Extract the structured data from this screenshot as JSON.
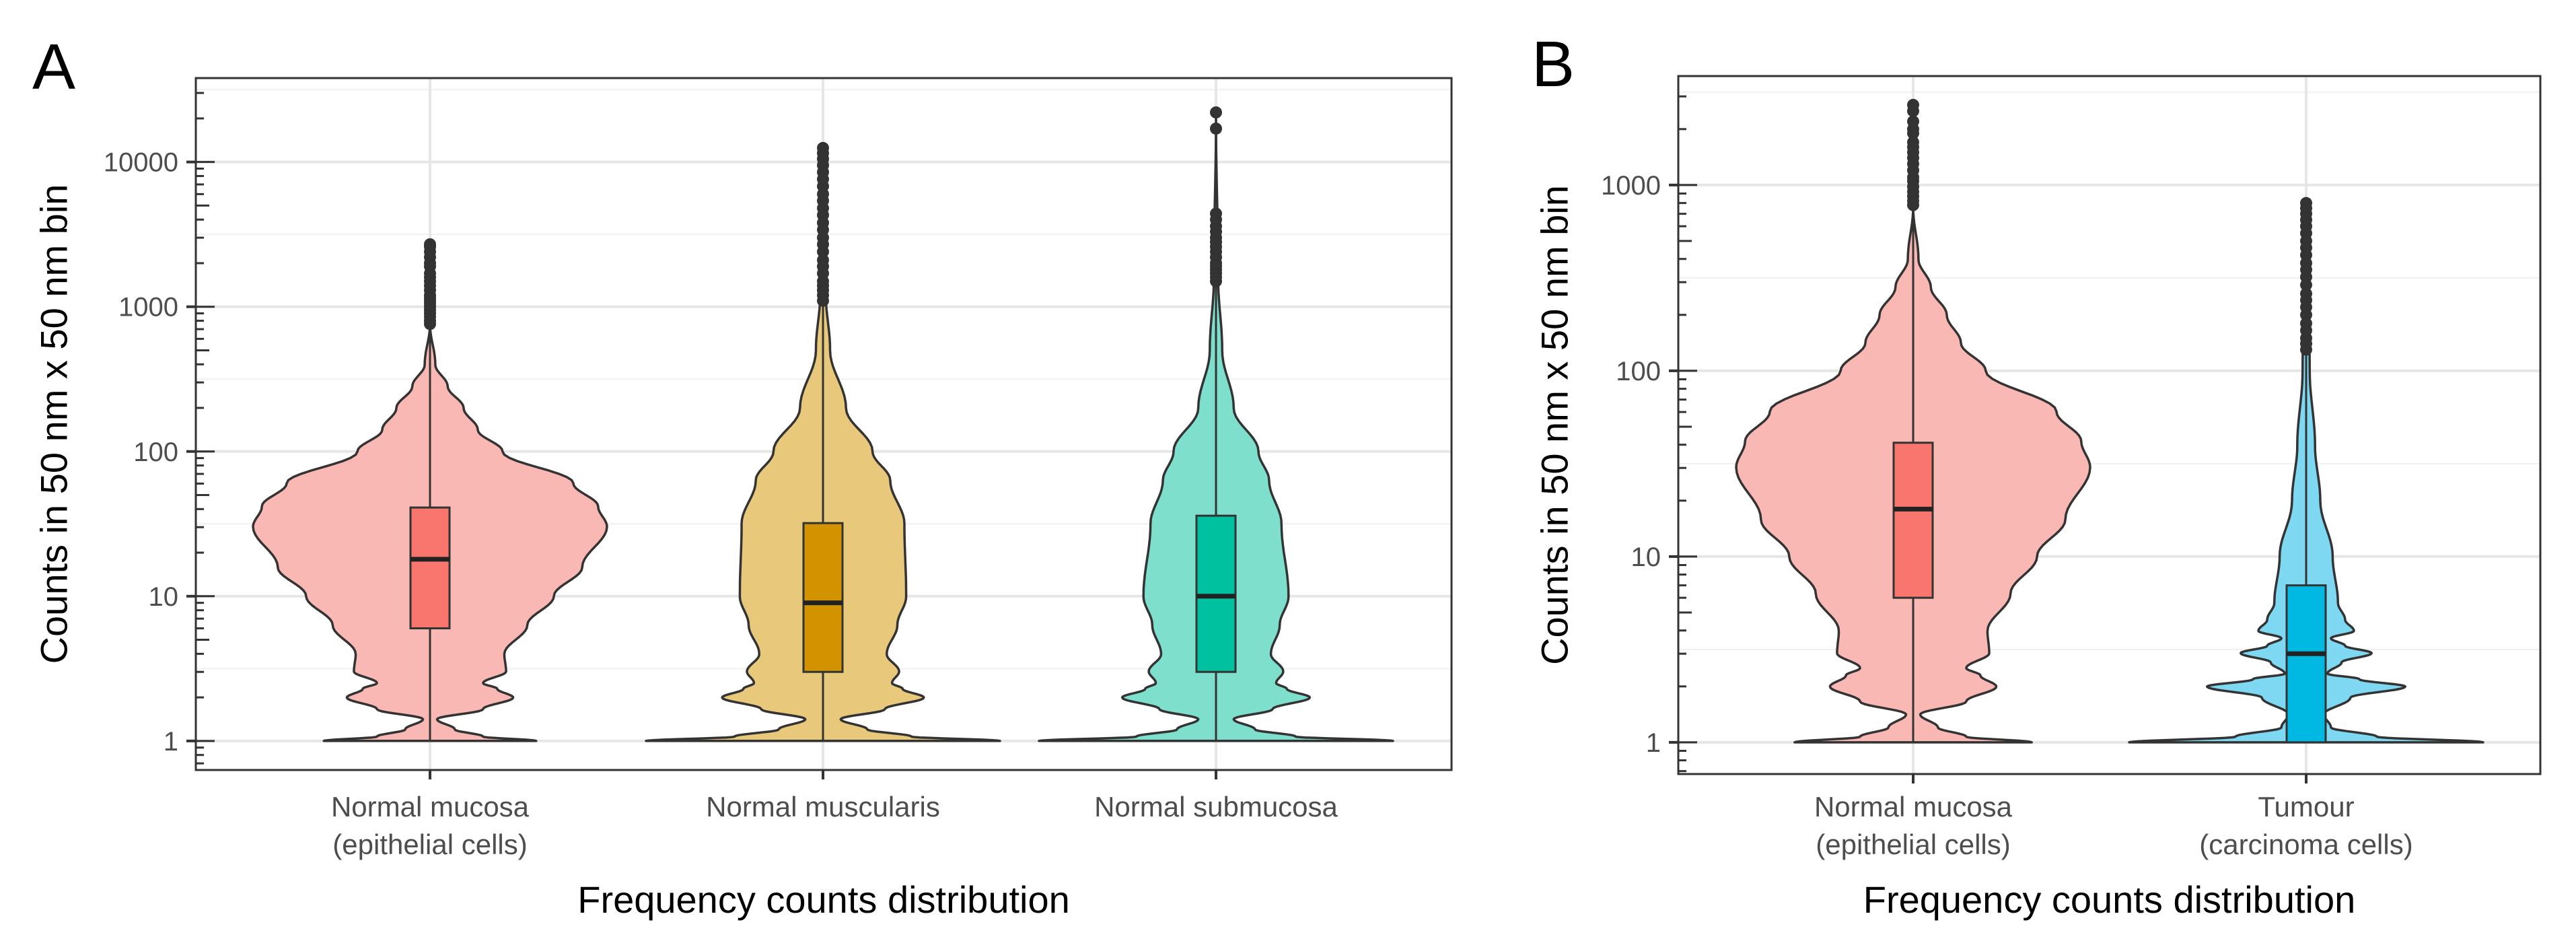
{
  "chart_data": [
    {
      "panel": "A",
      "type": "violin",
      "xlabel": "Frequency counts distribution",
      "ylabel": "Counts in 50 nm x 50 nm bin",
      "yscale": "log10",
      "ylim": [
        0.63,
        38000
      ],
      "yticks": [
        1,
        10,
        100,
        1000,
        10000
      ],
      "ytick_labels": [
        "1",
        "10",
        "100",
        "1000",
        "10000"
      ],
      "grid": true,
      "groups": [
        {
          "label_lines": [
            "Normal mucosa",
            "(epithelial cells)"
          ],
          "box_color": "#F8766D",
          "violin_color": "#F9B8B3",
          "whisker_low": 1,
          "q1": 6,
          "median": 18,
          "q3": 41,
          "whisker_high": 750,
          "outliers": [
            760,
            800,
            850,
            900,
            950,
            1000,
            1050,
            1100,
            1150,
            1200,
            1300,
            1400,
            1500,
            1600,
            1700,
            1900,
            2000,
            2200,
            2400,
            2600,
            2700
          ],
          "density_profile": [
            [
              0,
              0.6
            ],
            [
              0.03,
              0.3
            ],
            [
              0.08,
              0.14
            ],
            [
              0.15,
              0.04
            ],
            [
              0.22,
              0.3
            ],
            [
              0.3,
              0.47
            ],
            [
              0.36,
              0.38
            ],
            [
              0.4,
              0.3
            ],
            [
              0.48,
              0.43
            ],
            [
              0.6,
              0.42
            ],
            [
              0.8,
              0.55
            ],
            [
              1.0,
              0.7
            ],
            [
              1.2,
              0.86
            ],
            [
              1.48,
              1.0
            ],
            [
              1.62,
              0.95
            ],
            [
              1.78,
              0.81
            ],
            [
              2.0,
              0.41
            ],
            [
              2.15,
              0.27
            ],
            [
              2.3,
              0.19
            ],
            [
              2.45,
              0.1
            ],
            [
              2.6,
              0.03
            ],
            [
              2.88,
              0
            ]
          ]
        },
        {
          "label_lines": [
            "Normal muscularis"
          ],
          "box_color": "#D39200",
          "violin_color": "#E8C87A",
          "whisker_low": 1,
          "q1": 3,
          "median": 9,
          "q3": 32,
          "whisker_high": 1080,
          "outliers": [
            1100,
            1200,
            1300,
            1400,
            1500,
            1700,
            1900,
            2100,
            2400,
            2700,
            3000,
            3400,
            3800,
            4300,
            4800,
            5400,
            6000,
            6800,
            7600,
            8500,
            9500,
            10500,
            11500,
            12500
          ],
          "density_profile": [
            [
              0,
              1.0
            ],
            [
              0.03,
              0.5
            ],
            [
              0.08,
              0.25
            ],
            [
              0.15,
              0.1
            ],
            [
              0.22,
              0.35
            ],
            [
              0.3,
              0.57
            ],
            [
              0.36,
              0.45
            ],
            [
              0.4,
              0.39
            ],
            [
              0.48,
              0.43
            ],
            [
              0.6,
              0.36
            ],
            [
              0.8,
              0.42
            ],
            [
              1.0,
              0.47
            ],
            [
              1.5,
              0.46
            ],
            [
              1.8,
              0.38
            ],
            [
              2.0,
              0.28
            ],
            [
              2.3,
              0.13
            ],
            [
              2.7,
              0.04
            ],
            [
              3.1,
              0.015
            ],
            [
              4.0,
              0
            ]
          ]
        },
        {
          "label_lines": [
            "Normal submucosa"
          ],
          "box_color": "#00C19F",
          "violin_color": "#7EDFCC",
          "whisker_low": 1,
          "q1": 3,
          "median": 10,
          "q3": 36,
          "whisker_high": 1450,
          "outliers": [
            1500,
            1600,
            1700,
            1800,
            1900,
            2000,
            2200,
            2400,
            2600,
            2800,
            3000,
            3300,
            3600,
            4000,
            4400,
            17000,
            22000
          ],
          "density_profile": [
            [
              0,
              1.0
            ],
            [
              0.03,
              0.45
            ],
            [
              0.08,
              0.22
            ],
            [
              0.15,
              0.1
            ],
            [
              0.22,
              0.32
            ],
            [
              0.3,
              0.53
            ],
            [
              0.36,
              0.4
            ],
            [
              0.4,
              0.34
            ],
            [
              0.48,
              0.38
            ],
            [
              0.6,
              0.31
            ],
            [
              0.8,
              0.36
            ],
            [
              1.0,
              0.41
            ],
            [
              1.5,
              0.37
            ],
            [
              1.8,
              0.3
            ],
            [
              2.0,
              0.24
            ],
            [
              2.3,
              0.1
            ],
            [
              2.7,
              0.035
            ],
            [
              3.2,
              0.012
            ],
            [
              4.3,
              0
            ]
          ]
        }
      ]
    },
    {
      "panel": "B",
      "type": "violin",
      "xlabel": "Frequency counts distribution",
      "ylabel": "Counts in 50 nm x 50 nm bin",
      "yscale": "log10",
      "ylim": [
        0.675,
        3860
      ],
      "yticks": [
        1,
        10,
        100,
        1000
      ],
      "ytick_labels": [
        "1",
        "10",
        "100",
        "1000"
      ],
      "grid": true,
      "groups": [
        {
          "label_lines": [
            "Normal mucosa",
            "(epithelial cells)"
          ],
          "box_color": "#F8766D",
          "violin_color": "#F9B8B3",
          "whisker_low": 1,
          "q1": 6,
          "median": 18,
          "q3": 41,
          "whisker_high": 770,
          "outliers": [
            780,
            820,
            870,
            920,
            980,
            1050,
            1100,
            1200,
            1300,
            1400,
            1500,
            1600,
            1700,
            1900,
            2000,
            2200,
            2500,
            2700
          ],
          "density_profile": [
            [
              0,
              0.67
            ],
            [
              0.03,
              0.3
            ],
            [
              0.08,
              0.14
            ],
            [
              0.15,
              0.04
            ],
            [
              0.22,
              0.3
            ],
            [
              0.3,
              0.47
            ],
            [
              0.36,
              0.38
            ],
            [
              0.4,
              0.3
            ],
            [
              0.48,
              0.43
            ],
            [
              0.6,
              0.42
            ],
            [
              0.8,
              0.55
            ],
            [
              1.0,
              0.7
            ],
            [
              1.2,
              0.86
            ],
            [
              1.48,
              1.0
            ],
            [
              1.62,
              0.95
            ],
            [
              1.78,
              0.81
            ],
            [
              2.0,
              0.41
            ],
            [
              2.15,
              0.27
            ],
            [
              2.3,
              0.19
            ],
            [
              2.45,
              0.1
            ],
            [
              2.6,
              0.03
            ],
            [
              2.88,
              0
            ]
          ]
        },
        {
          "label_lines": [
            "Tumour",
            "(carcinoma cells)"
          ],
          "box_color": "#00B9E3",
          "violin_color": "#7ED8F2",
          "whisker_low": 1,
          "q1": 1,
          "median": 3,
          "q3": 7,
          "whisker_high": 125,
          "outliers": [
            130,
            140,
            150,
            165,
            180,
            200,
            220,
            240,
            260,
            290,
            320,
            350,
            380,
            420,
            460,
            500,
            550,
            600,
            650,
            700,
            750,
            800
          ],
          "density_profile": [
            [
              0,
              1.0
            ],
            [
              0.03,
              0.4
            ],
            [
              0.08,
              0.14
            ],
            [
              0.15,
              0.1
            ],
            [
              0.24,
              0.25
            ],
            [
              0.3,
              0.56
            ],
            [
              0.34,
              0.3
            ],
            [
              0.37,
              0.12
            ],
            [
              0.43,
              0.2
            ],
            [
              0.48,
              0.37
            ],
            [
              0.52,
              0.22
            ],
            [
              0.56,
              0.14
            ],
            [
              0.6,
              0.27
            ],
            [
              0.66,
              0.22
            ],
            [
              0.75,
              0.18
            ],
            [
              1.0,
              0.15
            ],
            [
              1.3,
              0.08
            ],
            [
              1.6,
              0.05
            ],
            [
              2.0,
              0.02
            ],
            [
              2.6,
              0.005
            ],
            [
              2.9,
              0
            ]
          ]
        }
      ]
    }
  ]
}
